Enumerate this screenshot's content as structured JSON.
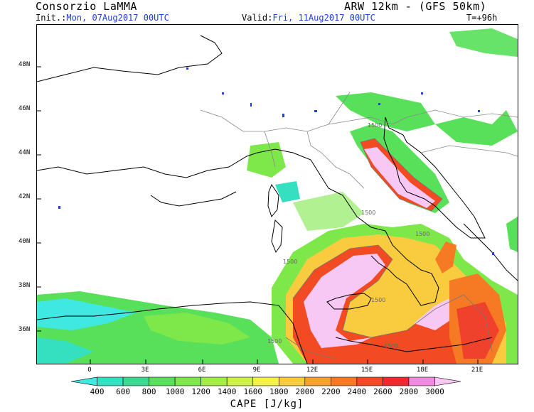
{
  "header": {
    "source": "Consorzio LaMMA",
    "model": "ARW 12km - (GFS 50km)",
    "init_label": "Init.:",
    "init_value": "Mon, 07Aug2017 00UTC",
    "valid_label": "Valid:",
    "valid_value": "Fri, 11Aug2017 00UTC",
    "lead_time": "T=+96h"
  },
  "map": {
    "lat_labels": [
      "48N",
      "46N",
      "44N",
      "42N",
      "40N",
      "38N",
      "36N"
    ],
    "lon_labels": [
      "0",
      "3E",
      "6E",
      "9E",
      "12E",
      "15E",
      "18E",
      "21E"
    ],
    "contour_labels": [
      "1500",
      "1500",
      "1500",
      "1500",
      "1500",
      "1500",
      "1500"
    ]
  },
  "colorbar": {
    "title": "CAPE [J/kg]",
    "levels": [
      "400",
      "600",
      "800",
      "1000",
      "1200",
      "1400",
      "1600",
      "1800",
      "2000",
      "2200",
      "2400",
      "2600",
      "2800",
      "3000"
    ],
    "colors": [
      "#3fe8e0",
      "#35e0c0",
      "#3ed890",
      "#58e05a",
      "#7ee84a",
      "#a4ec48",
      "#cdf04a",
      "#f4f24a",
      "#f8cc3e",
      "#f7a030",
      "#f67a24",
      "#f24a22",
      "#ee2a30",
      "#f08ae0",
      "#f8c8f4"
    ]
  }
}
